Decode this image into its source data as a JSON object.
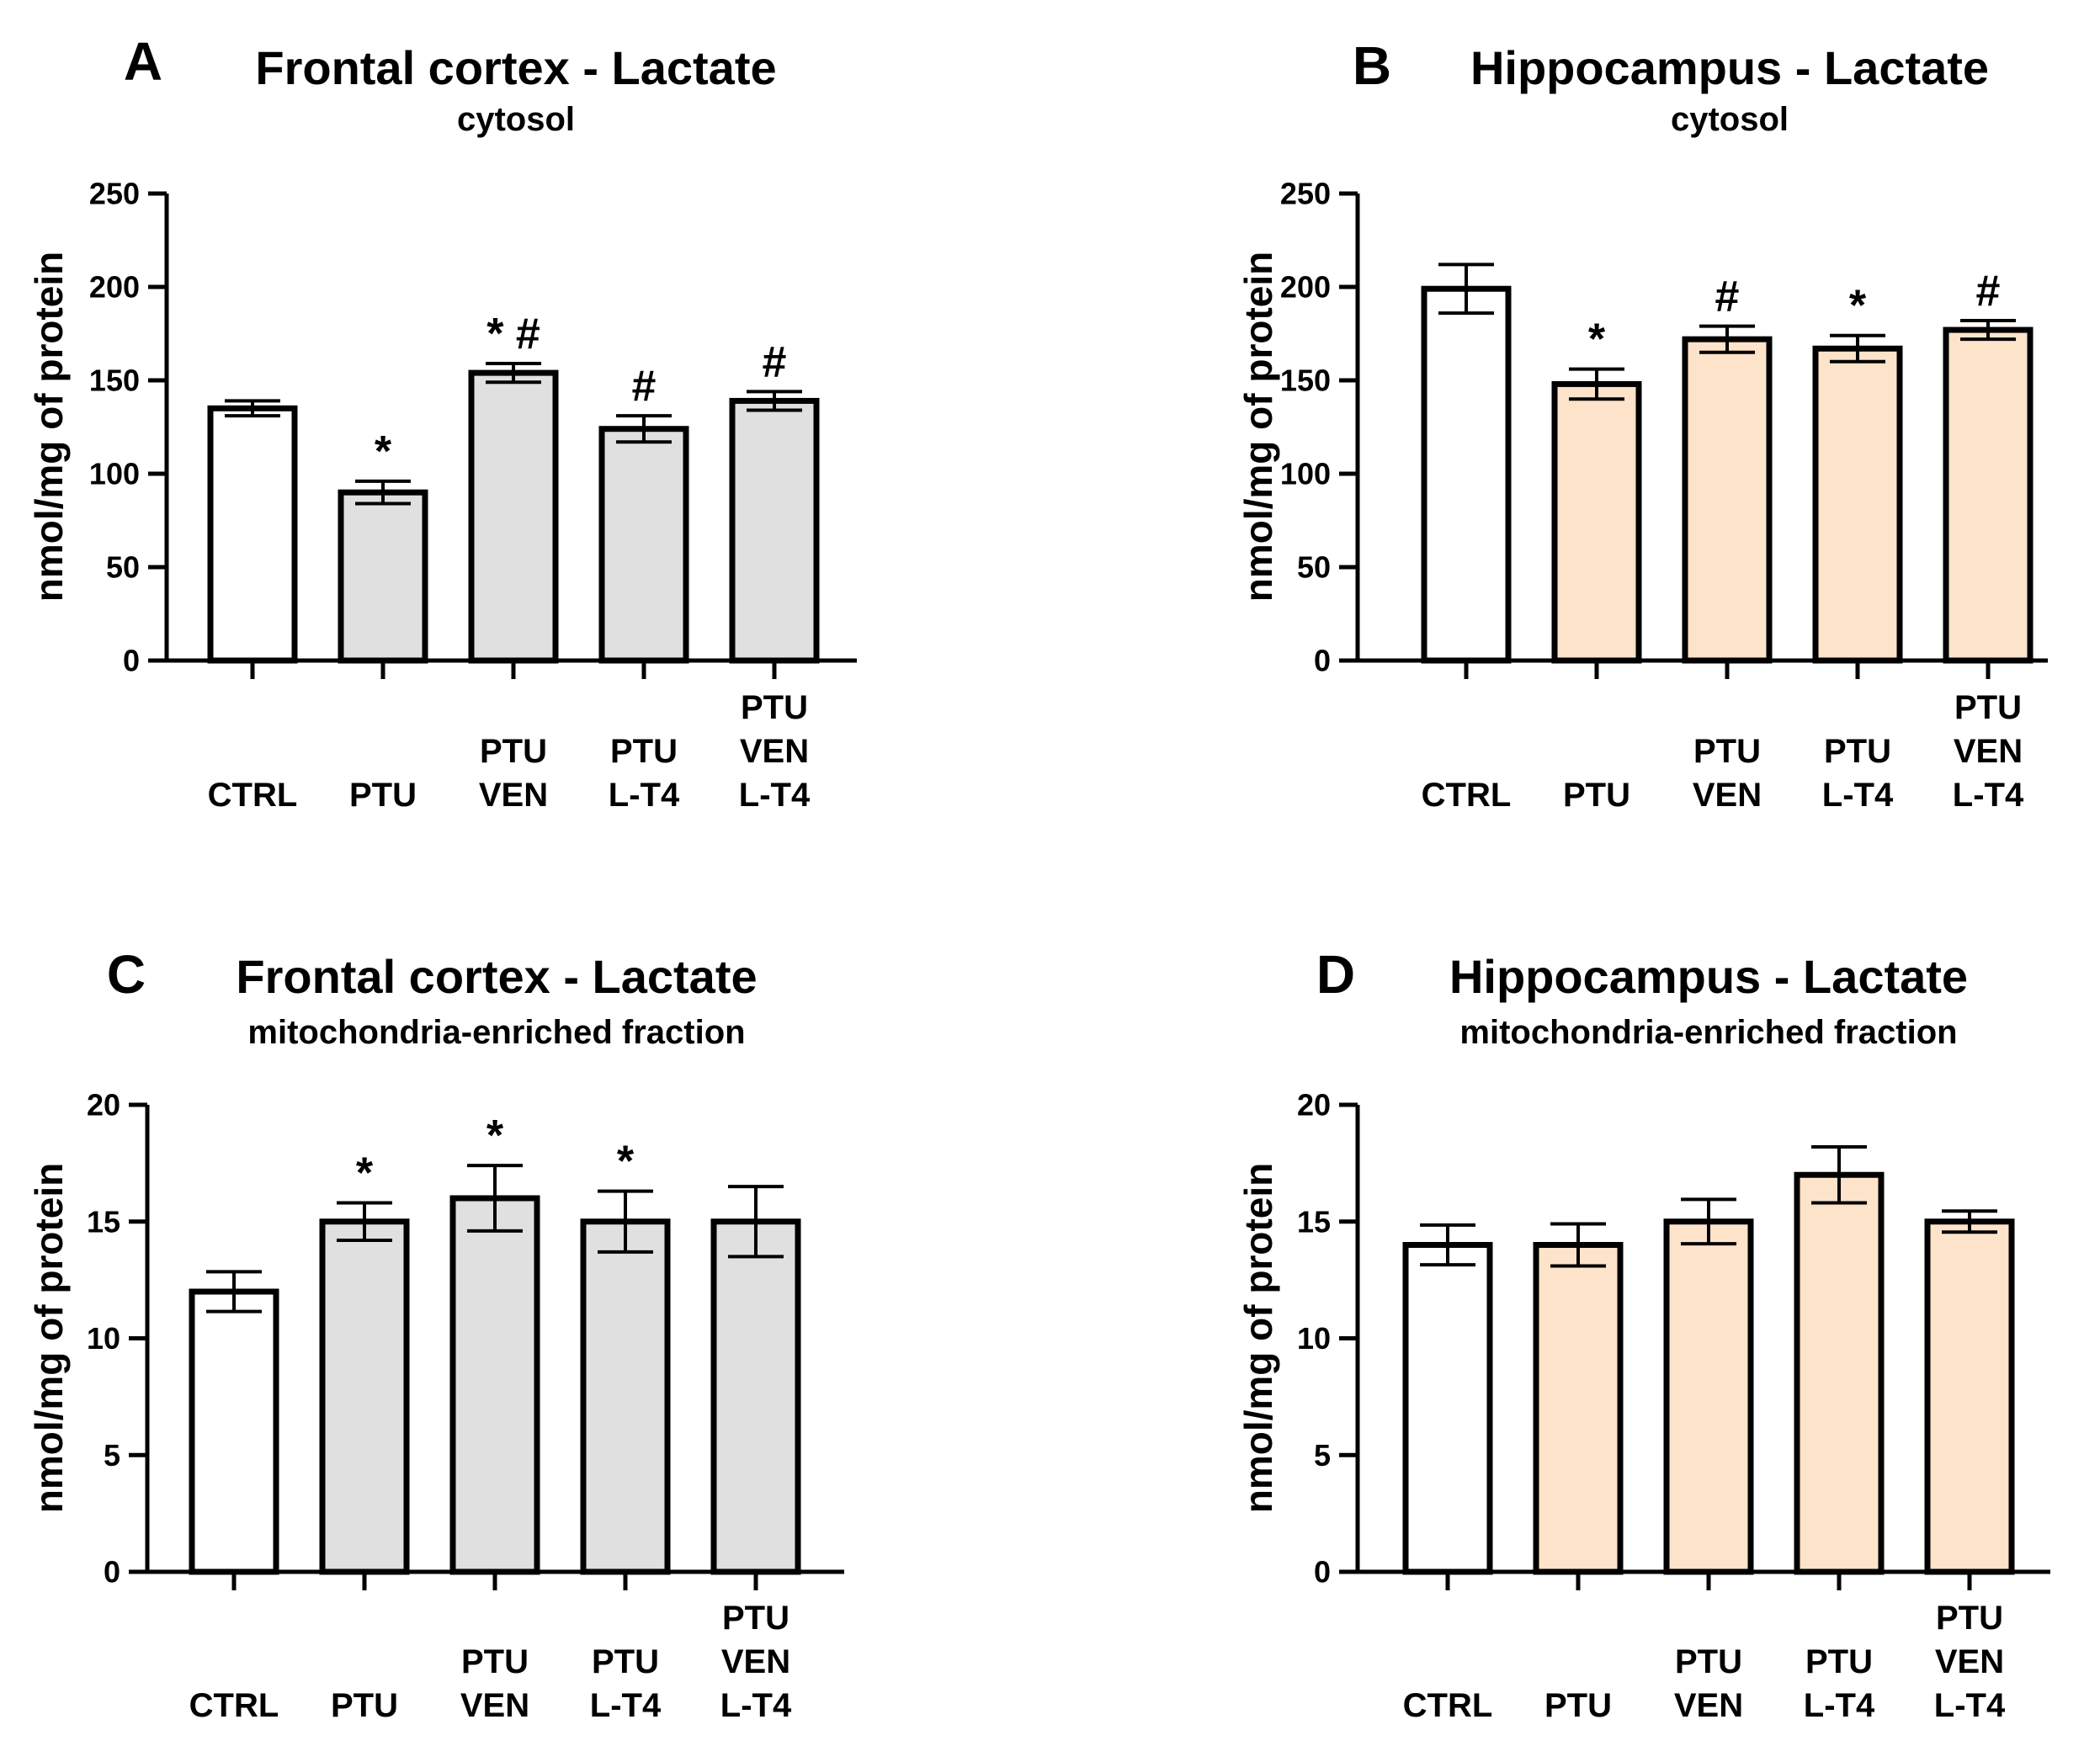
{
  "colors": {
    "control_fill": "#ffffff",
    "frontal_fill": "#e0e0e0",
    "hippocampus_fill": "#fde3c9",
    "stroke": "#000000"
  },
  "chart_data": [
    {
      "type": "bar",
      "panel": "A",
      "title": "Frontal cortex - Lactate",
      "subtitle": "cytosol",
      "ylabel": "nmol/mg of protein",
      "xlabel": "",
      "ylim": [
        0,
        250
      ],
      "yticks": [
        0,
        50,
        100,
        150,
        200,
        250
      ],
      "categories": [
        [
          "CTRL"
        ],
        [
          "PTU"
        ],
        [
          "PTU",
          "VEN"
        ],
        [
          "PTU",
          "L-T4"
        ],
        [
          "PTU",
          "VEN",
          "L-T4"
        ]
      ],
      "values": [
        135,
        90,
        154,
        124,
        139
      ],
      "errors": [
        4,
        6,
        5,
        7,
        5
      ],
      "annotations": [
        "",
        "*",
        "* #",
        "#",
        "#"
      ],
      "fills": [
        "control",
        "frontal",
        "frontal",
        "frontal",
        "frontal"
      ]
    },
    {
      "type": "bar",
      "panel": "B",
      "title": "Hippocampus - Lactate",
      "subtitle": "cytosol",
      "ylabel": "nmol/mg of protein",
      "xlabel": "",
      "ylim": [
        0,
        250
      ],
      "yticks": [
        0,
        50,
        100,
        150,
        200,
        250
      ],
      "categories": [
        [
          "CTRL"
        ],
        [
          "PTU"
        ],
        [
          "PTU",
          "VEN"
        ],
        [
          "PTU",
          "L-T4"
        ],
        [
          "PTU",
          "VEN",
          "L-T4"
        ]
      ],
      "values": [
        199,
        148,
        172,
        167,
        177
      ],
      "errors": [
        13,
        8,
        7,
        7,
        5
      ],
      "annotations": [
        "",
        "*",
        "#",
        "*",
        "#"
      ],
      "fills": [
        "control",
        "hippocampus",
        "hippocampus",
        "hippocampus",
        "hippocampus"
      ]
    },
    {
      "type": "bar",
      "panel": "C",
      "title": "Frontal cortex - Lactate",
      "subtitle": "mitochondria-enriched fraction",
      "ylabel": "nmol/mg of protein",
      "xlabel": "",
      "ylim": [
        0,
        20
      ],
      "yticks": [
        0,
        5,
        10,
        15,
        20
      ],
      "categories": [
        [
          "CTRL"
        ],
        [
          "PTU"
        ],
        [
          "PTU",
          "VEN"
        ],
        [
          "PTU",
          "L-T4"
        ],
        [
          "PTU",
          "VEN",
          "L-T4"
        ]
      ],
      "values": [
        12,
        15,
        16,
        15,
        15
      ],
      "errors": [
        0.85,
        0.8,
        1.4,
        1.3,
        1.5
      ],
      "annotations": [
        "",
        "*",
        "*",
        "*",
        ""
      ],
      "fills": [
        "control",
        "frontal",
        "frontal",
        "frontal",
        "frontal"
      ]
    },
    {
      "type": "bar",
      "panel": "D",
      "title": "Hippocampus - Lactate",
      "subtitle": "mitochondria-enriched fraction",
      "ylabel": "nmol/mg of protein",
      "xlabel": "",
      "ylim": [
        0,
        20
      ],
      "yticks": [
        0,
        5,
        10,
        15,
        20
      ],
      "categories": [
        [
          "CTRL"
        ],
        [
          "PTU"
        ],
        [
          "PTU",
          "VEN"
        ],
        [
          "PTU",
          "L-T4"
        ],
        [
          "PTU",
          "VEN",
          "L-T4"
        ]
      ],
      "values": [
        14,
        14,
        15,
        17,
        15
      ],
      "errors": [
        0.85,
        0.9,
        0.95,
        1.2,
        0.45
      ],
      "annotations": [
        "",
        "",
        "",
        "",
        ""
      ],
      "fills": [
        "control",
        "hippocampus",
        "hippocampus",
        "hippocampus",
        "hippocampus"
      ]
    }
  ]
}
